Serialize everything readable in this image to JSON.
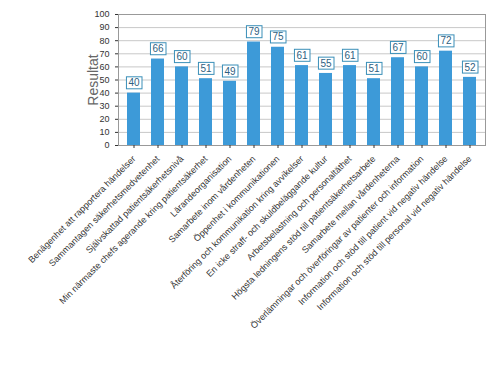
{
  "chart_data": {
    "type": "bar",
    "ylabel": "Resultat",
    "categories": [
      "Benägenhet att rapportera händelser",
      "Sammantagen säkerhetsmedvetenhet",
      "Självskattad patientsäkerhetsnivå",
      "Min närmaste chefs agerande kring patientsäkerhet",
      "Lärandeorganisation",
      "Samarbete inom vårdenheten",
      "Öppenhet i kommunikationen",
      "Återföring och kommunikation kring avvikelser",
      "En icke straff- och skuldbeläggande kultur",
      "Arbetsbelastning och personaltäthet",
      "Högsta ledningens stöd till patientsäkerhetsarbete",
      "Samarbete mellan vårdenheterna",
      "Överlämningar och överföringar av patienter och information",
      "Information och stöd till patient vid negativ händelse",
      "Information och stöd till personal vid negativ händelse"
    ],
    "values": [
      40,
      66,
      60,
      51,
      49,
      79,
      75,
      61,
      55,
      61,
      51,
      67,
      60,
      72,
      52
    ],
    "color": "#3d9ad8",
    "ylim": [
      0,
      100
    ],
    "yticks": [
      0,
      10,
      20,
      30,
      40,
      50,
      60,
      70,
      80,
      90,
      100
    ],
    "grid": true,
    "data_labels": true
  }
}
